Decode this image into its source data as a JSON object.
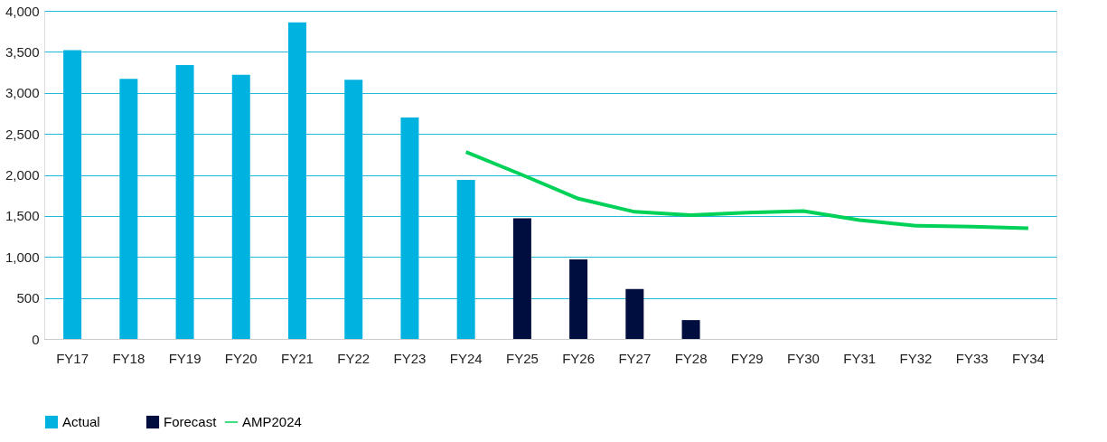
{
  "chart_data": {
    "type": "bar",
    "categories": [
      "FY17",
      "FY18",
      "FY19",
      "FY20",
      "FY21",
      "FY22",
      "FY23",
      "FY24",
      "FY25",
      "FY26",
      "FY27",
      "FY28",
      "FY29",
      "FY30",
      "FY31",
      "FY32",
      "FY33",
      "FY34"
    ],
    "series": [
      {
        "name": "Actual",
        "color": "#00b2e0",
        "values": [
          3520,
          3170,
          3340,
          3220,
          3860,
          3160,
          2700,
          1940,
          null,
          null,
          null,
          null,
          null,
          null,
          null,
          null,
          null,
          null
        ]
      },
      {
        "name": "Forecast",
        "color": "#000d3f",
        "values": [
          null,
          null,
          null,
          null,
          null,
          null,
          null,
          null,
          1470,
          970,
          610,
          230,
          null,
          null,
          null,
          null,
          null,
          null
        ]
      },
      {
        "name": "AMP2024",
        "type": "line",
        "color": "#00d158",
        "values": [
          null,
          null,
          null,
          null,
          null,
          null,
          null,
          2280,
          2000,
          1710,
          1550,
          1510,
          1540,
          1560,
          1450,
          1380,
          1370,
          1350
        ]
      }
    ],
    "ylim": [
      0,
      4000
    ],
    "yticks": [
      {
        "value": 0,
        "label": "0"
      },
      {
        "value": 500,
        "label": "500"
      },
      {
        "value": 1000,
        "label": "1,000"
      },
      {
        "value": 1500,
        "label": "1,500"
      },
      {
        "value": 2000,
        "label": "2,000"
      },
      {
        "value": 2500,
        "label": "2,500"
      },
      {
        "value": 3000,
        "label": "3,000"
      },
      {
        "value": 3500,
        "label": "3,500"
      },
      {
        "value": 4000,
        "label": "4,000"
      }
    ],
    "grid": "y",
    "legend": "bottom left"
  }
}
